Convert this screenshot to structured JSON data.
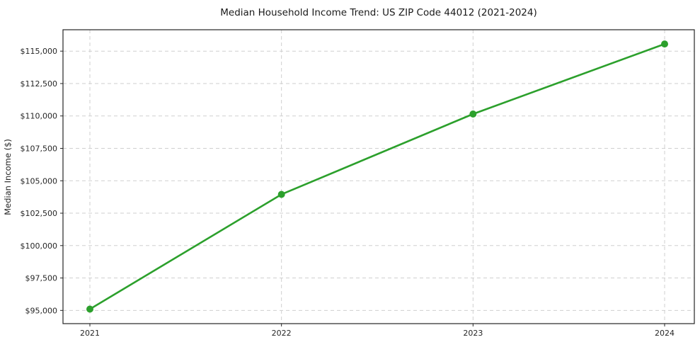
{
  "chart_data": {
    "type": "line",
    "title": "Median Household Income Trend: US ZIP Code 44012 (2021-2024)",
    "xlabel": "",
    "ylabel": "Median Income ($)",
    "categories": [
      "2021",
      "2022",
      "2023",
      "2024"
    ],
    "series": [
      {
        "name": "Median Household Income",
        "values": [
          95100,
          103950,
          110150,
          115550
        ]
      }
    ],
    "y_ticks": [
      95000,
      97500,
      100000,
      102500,
      105000,
      107500,
      110000,
      112500,
      115000
    ],
    "y_tick_labels": [
      "$95,000",
      "$97,500",
      "$100,000",
      "$102,500",
      "$105,000",
      "$107,500",
      "$110,000",
      "$112,500",
      "$115,000"
    ],
    "ylim": [
      93980,
      116650
    ],
    "grid": true,
    "grid_style": "dashed",
    "legend": false,
    "line_color": "#2ca02c",
    "marker": "circle",
    "marker_size": 5,
    "background_color": "#ffffff",
    "frame_color": "#262626"
  }
}
